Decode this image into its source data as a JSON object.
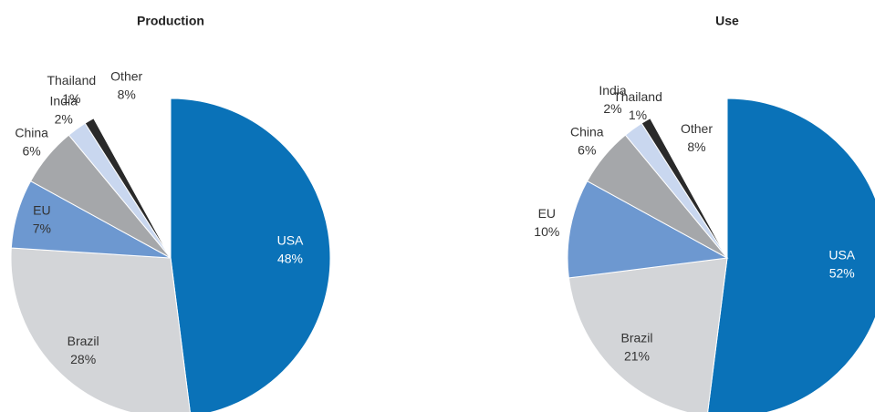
{
  "chart_data": [
    {
      "type": "pie",
      "title": "Production",
      "categories": [
        "USA",
        "Brazil",
        "EU",
        "China",
        "India",
        "Thailand",
        "Other"
      ],
      "values": [
        48,
        28,
        7,
        6,
        2,
        1,
        8
      ],
      "value_labels": [
        "48%",
        "28%",
        "7%",
        "6%",
        "2%",
        "1%",
        "8%"
      ],
      "colors": [
        "#0a72b8",
        "#d3d5d8",
        "#6d98d0",
        "#a5a7aa",
        "#c9d7ef",
        "#2a2a2a",
        "#ffffff"
      ]
    },
    {
      "type": "pie",
      "title": "Use",
      "categories": [
        "USA",
        "Brazil",
        "EU",
        "China",
        "India",
        "Thailand",
        "Other"
      ],
      "values": [
        52,
        21,
        10,
        6,
        2,
        1,
        8
      ],
      "value_labels": [
        "52%",
        "21%",
        "10%",
        "6%",
        "2%",
        "1%",
        "8%"
      ],
      "colors": [
        "#0a72b8",
        "#d3d5d8",
        "#6d98d0",
        "#a5a7aa",
        "#c9d7ef",
        "#2a2a2a",
        "#ffffff"
      ]
    }
  ]
}
